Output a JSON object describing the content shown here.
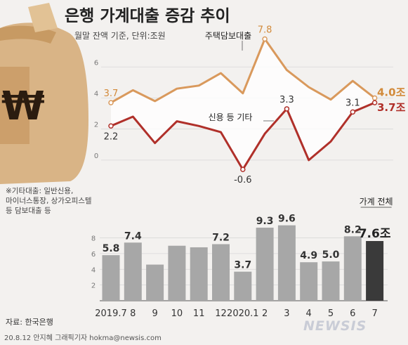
{
  "title": "은행 가계대출 증감 추이",
  "subtitle": "월말 잔액 기준, 단위:조원",
  "note_lines": [
    "※기타대출: 일반신용,",
    "마이너스통장, 상가오피스텔",
    "등 담보대출 등"
  ],
  "source": "자료: 한국은행",
  "credit": "20.8.12 안지혜 그래픽기자 hokma@newsis.com",
  "logo": "NEWSIS",
  "colors": {
    "mortgage": "#d9995c",
    "other": "#b0302a",
    "bar": "#a7a7a7",
    "bar_last": "#3a3a3a"
  },
  "chart_data": [
    {
      "type": "line",
      "y_ticks": [
        0,
        2,
        4,
        6
      ],
      "ylim": [
        -1,
        8.5
      ],
      "series": [
        {
          "name": "주택담보대출",
          "key": "mortgage",
          "values": [
            3.7,
            4.5,
            3.8,
            4.6,
            4.8,
            5.6,
            4.3,
            7.8,
            5.8,
            4.7,
            3.9,
            5.1,
            4.0
          ],
          "labels": {
            "0": "3.7",
            "7": "7.8"
          },
          "end_label": "4.0조"
        },
        {
          "name": "신용 등 기타",
          "key": "other",
          "values": [
            2.2,
            2.8,
            1.1,
            2.5,
            2.2,
            1.8,
            -0.6,
            1.7,
            3.3,
            0.0,
            1.2,
            3.1,
            3.7
          ],
          "labels": {
            "0": "2.2",
            "6": "-0.6",
            "8": "3.3",
            "11": "3.1"
          },
          "end_label": "3.7조"
        }
      ]
    },
    {
      "type": "bar",
      "series_name": "가계 전체",
      "categories": [
        "2019.7",
        "8",
        "9",
        "10",
        "11",
        "12",
        "2020.1",
        "2",
        "3",
        "4",
        "5",
        "6",
        "7"
      ],
      "values": [
        5.8,
        7.4,
        4.6,
        7.0,
        6.8,
        7.2,
        3.7,
        9.3,
        9.6,
        4.9,
        5.0,
        8.2,
        7.6
      ],
      "labels": [
        "5.8",
        "7.4",
        "",
        "",
        "",
        "7.2",
        "3.7",
        "9.3",
        "9.6",
        "4.9",
        "5.0",
        "8.2",
        "7.6조"
      ],
      "y_ticks": [
        2,
        4,
        6,
        8
      ],
      "ylim": [
        0,
        11
      ]
    }
  ]
}
